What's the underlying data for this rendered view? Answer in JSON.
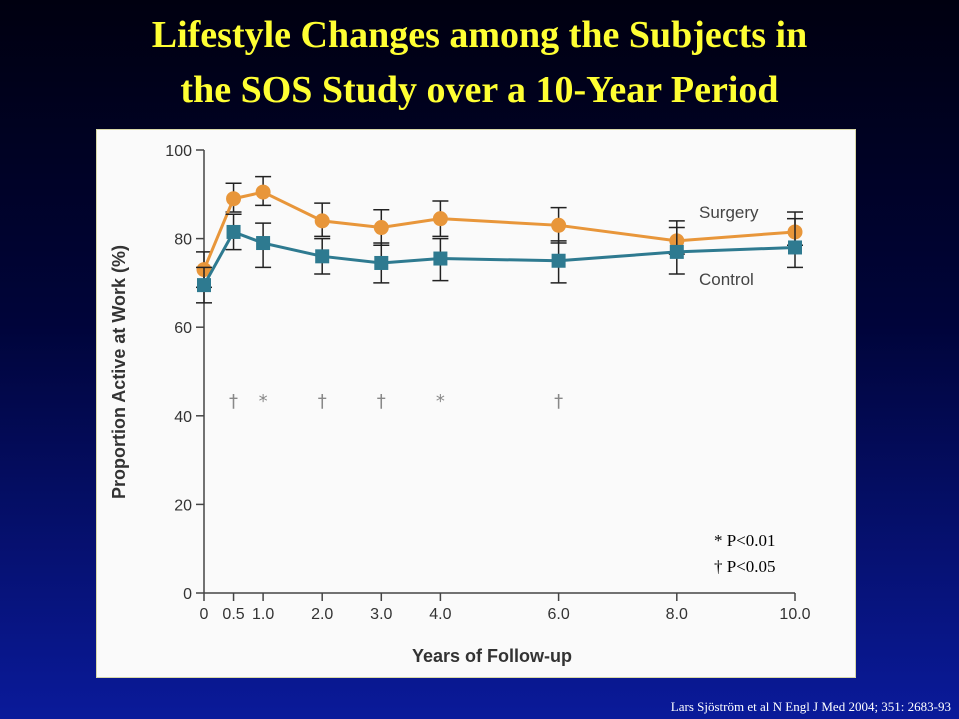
{
  "slide": {
    "title_line1": "Lifestyle Changes among the Subjects in",
    "title_line2": "the SOS Study over a 10-Year Period",
    "citation": "Lars Sjöström et al N Engl J Med 2004; 351: 2683-93"
  },
  "colors": {
    "title": "#ffff33",
    "surgery": "#e8963a",
    "control": "#2e7a90",
    "error_bar": "#222222"
  },
  "chart_data": {
    "type": "line",
    "xlabel": "Years of Follow-up",
    "ylabel": "Proportion Active at Work (%)",
    "xlim": [
      0,
      10
    ],
    "ylim": [
      0,
      100
    ],
    "x_ticks": [
      0,
      0.5,
      1.0,
      2.0,
      3.0,
      4.0,
      6.0,
      8.0,
      10.0
    ],
    "x_tick_labels": [
      "0",
      "0.5",
      "1.0",
      "2.0",
      "3.0",
      "4.0",
      "6.0",
      "8.0",
      "10.0"
    ],
    "y_ticks": [
      0,
      20,
      40,
      60,
      80,
      100
    ],
    "y_tick_labels": [
      "0",
      "20",
      "40",
      "60",
      "80",
      "100"
    ],
    "grid": false,
    "series": [
      {
        "name": "Surgery",
        "x": [
          0,
          0.5,
          1.0,
          2.0,
          3.0,
          4.0,
          6.0,
          8.0,
          10.0
        ],
        "values": [
          73,
          89,
          90.5,
          84,
          82.5,
          84.5,
          83,
          79.5,
          81.5
        ],
        "err_low": [
          69,
          86,
          87.5,
          80.5,
          78.5,
          80.5,
          79,
          76.5,
          78.5
        ],
        "err_high": [
          77,
          92.5,
          94,
          88,
          86.5,
          88.5,
          87,
          82.5,
          84.5
        ]
      },
      {
        "name": "Control",
        "x": [
          0,
          0.5,
          1.0,
          2.0,
          3.0,
          4.0,
          6.0,
          8.0,
          10.0
        ],
        "values": [
          69.5,
          81.5,
          79,
          76,
          74.5,
          75.5,
          75,
          77,
          78
        ],
        "err_low": [
          65.5,
          77.5,
          73.5,
          72,
          70,
          70.5,
          70,
          72,
          73.5
        ],
        "err_high": [
          73.5,
          85.5,
          83.5,
          80,
          79,
          80,
          79.5,
          84,
          86
        ]
      }
    ],
    "significance_markers": [
      {
        "x": 0.5,
        "symbol": "†"
      },
      {
        "x": 1.0,
        "symbol": "*"
      },
      {
        "x": 2.0,
        "symbol": "†"
      },
      {
        "x": 3.0,
        "symbol": "†"
      },
      {
        "x": 4.0,
        "symbol": "*"
      },
      {
        "x": 6.0,
        "symbol": "†"
      }
    ],
    "significance_y": 42,
    "legend_notes": [
      "* P<0.01",
      "† P<0.05"
    ]
  }
}
